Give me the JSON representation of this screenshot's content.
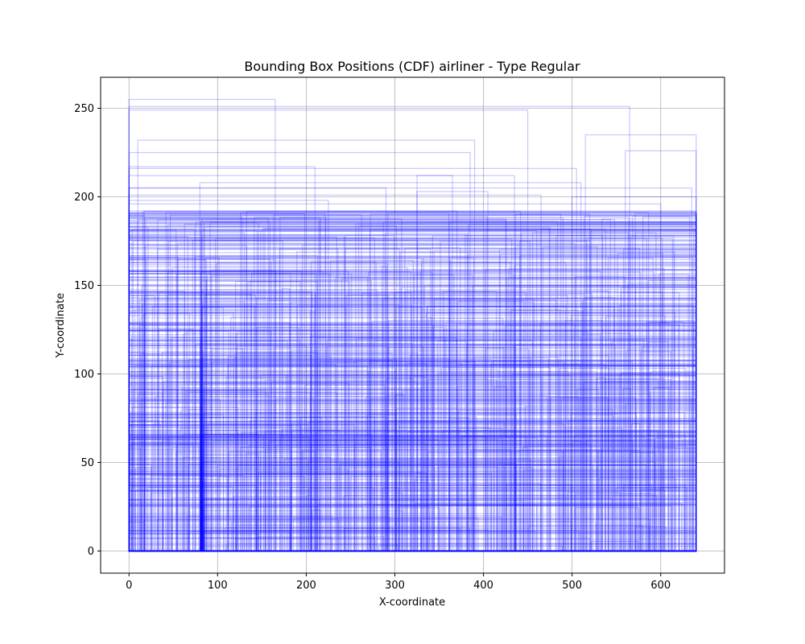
{
  "chart_data": {
    "type": "box-outlines",
    "title": "Bounding Box Positions (CDF) airliner - Type Regular",
    "xlabel": "X-coordinate",
    "ylabel": "Y-coordinate",
    "xlim": [
      -32,
      672
    ],
    "ylim": [
      -12.5,
      267.5
    ],
    "xticks": [
      0,
      100,
      200,
      300,
      400,
      500,
      600
    ],
    "yticks": [
      0,
      50,
      100,
      150,
      200,
      250
    ],
    "grid": true,
    "color": "#0000ff",
    "box_count": 800,
    "boxes": [
      {
        "x": [
          0,
          165
        ],
        "y": [
          0,
          255
        ]
      },
      {
        "x": [
          0,
          450
        ],
        "y": [
          0,
          249
        ]
      },
      {
        "x": [
          0,
          565
        ],
        "y": [
          0,
          251
        ]
      },
      {
        "x": [
          10,
          390
        ],
        "y": [
          0,
          232
        ]
      },
      {
        "x": [
          0,
          385
        ],
        "y": [
          0,
          225
        ]
      },
      {
        "x": [
          0,
          210
        ],
        "y": [
          0,
          217
        ]
      },
      {
        "x": [
          515,
          640
        ],
        "y": [
          0,
          235
        ]
      },
      {
        "x": [
          560,
          640
        ],
        "y": [
          0,
          226
        ]
      },
      {
        "x": [
          0,
          435
        ],
        "y": [
          0,
          212
        ]
      },
      {
        "x": [
          0,
          505
        ],
        "y": [
          0,
          216
        ]
      },
      {
        "x": [
          325,
          365
        ],
        "y": [
          0,
          212
        ]
      },
      {
        "x": [
          325,
          405
        ],
        "y": [
          0,
          203
        ]
      },
      {
        "x": [
          80,
          510
        ],
        "y": [
          0,
          208
        ]
      },
      {
        "x": [
          0,
          290
        ],
        "y": [
          0,
          205
        ]
      },
      {
        "x": [
          0,
          225
        ],
        "y": [
          0,
          198
        ]
      },
      {
        "x": [
          0,
          465
        ],
        "y": [
          0,
          201
        ]
      },
      {
        "x": [
          0,
          635
        ],
        "y": [
          0,
          205
        ]
      },
      {
        "x": [
          500,
          640
        ],
        "y": [
          0,
          200
        ]
      },
      {
        "x": [
          0,
          370
        ],
        "y": [
          0,
          192
        ]
      },
      {
        "x": [
          0,
          600
        ],
        "y": [
          0,
          196
        ]
      },
      {
        "x": [
          0,
          490
        ],
        "y": [
          0,
          188
        ]
      },
      {
        "x": [
          0,
          460
        ],
        "y": [
          0,
          181
        ]
      }
    ]
  }
}
